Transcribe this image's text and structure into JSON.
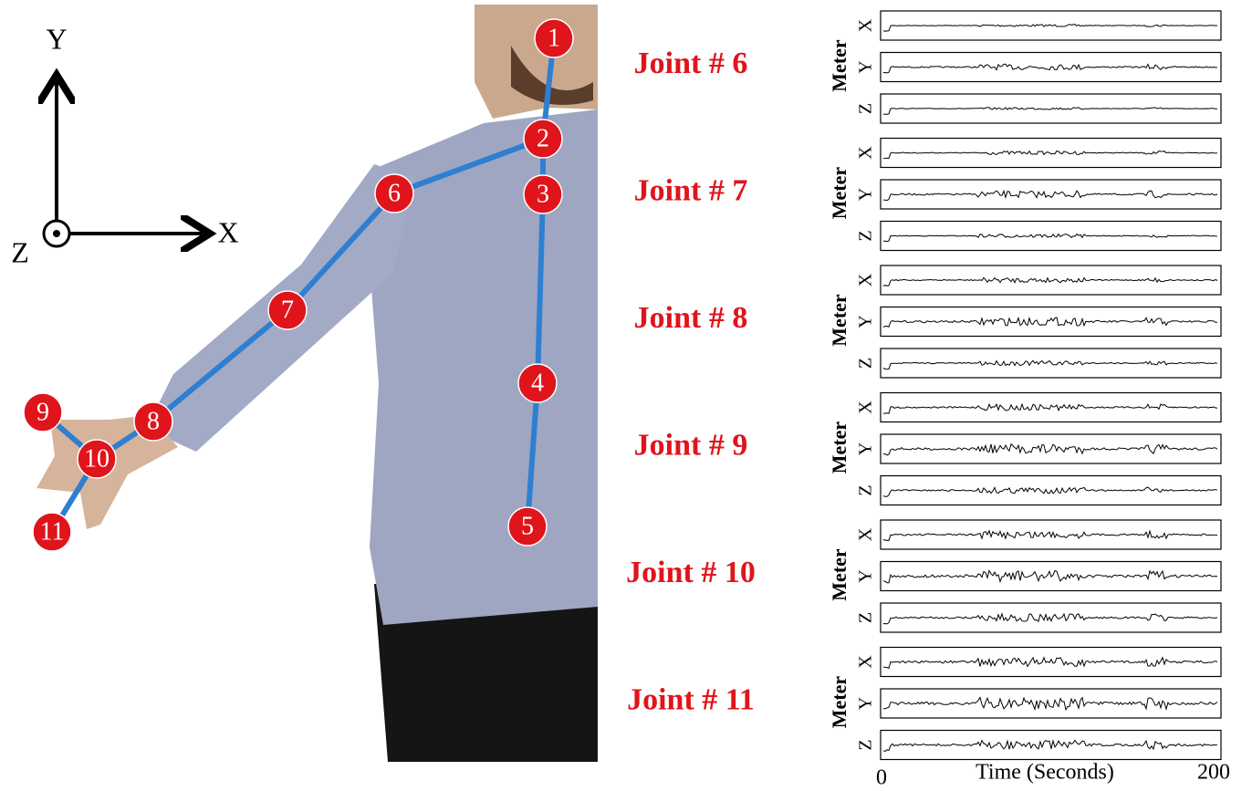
{
  "axes": {
    "y": "Y",
    "x": "X",
    "z": "Z"
  },
  "joints": [
    "1",
    "2",
    "3",
    "4",
    "5",
    "6",
    "7",
    "8",
    "9",
    "10",
    "11"
  ],
  "panels": [
    {
      "label": "Joint # 6",
      "unit": "Meter",
      "channels": [
        "X",
        "Y",
        "Z"
      ]
    },
    {
      "label": "Joint # 7",
      "unit": "Meter",
      "channels": [
        "X",
        "Y",
        "Z"
      ]
    },
    {
      "label": "Joint # 8",
      "unit": "Meter",
      "channels": [
        "X",
        "Y",
        "Z"
      ]
    },
    {
      "label": "Joint # 9",
      "unit": "Meter",
      "channels": [
        "X",
        "Y",
        "Z"
      ]
    },
    {
      "label": "Joint # 10",
      "unit": "Meter",
      "channels": [
        "X",
        "Y",
        "Z"
      ]
    },
    {
      "label": "Joint # 11",
      "unit": "Meter",
      "channels": [
        "X",
        "Y",
        "Z"
      ]
    }
  ],
  "time_axis": {
    "label": "Time (Seconds)",
    "start": 0,
    "end": 200
  }
}
